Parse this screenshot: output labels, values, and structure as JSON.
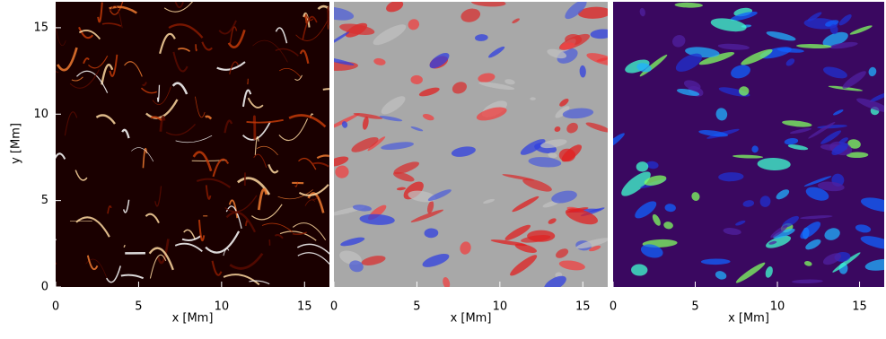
{
  "chart_data": [
    {
      "type": "image",
      "xlabel": "x [Mm]",
      "ylabel": "y [Mm]",
      "xlim": [
        0,
        16.5
      ],
      "xticks": [
        0,
        5,
        10,
        15
      ],
      "ylim": [
        0,
        16.5
      ],
      "yticks": [
        0,
        5,
        10,
        15
      ]
    },
    {
      "type": "image",
      "xlabel": "x [Mm]",
      "xlim": [
        0,
        16.5
      ],
      "xticks": [
        0,
        5,
        10,
        15
      ]
    },
    {
      "type": "image",
      "xlabel": "x [Mm]",
      "xlim": [
        0,
        16.5
      ],
      "xticks": [
        0,
        5,
        10,
        15
      ]
    }
  ]
}
